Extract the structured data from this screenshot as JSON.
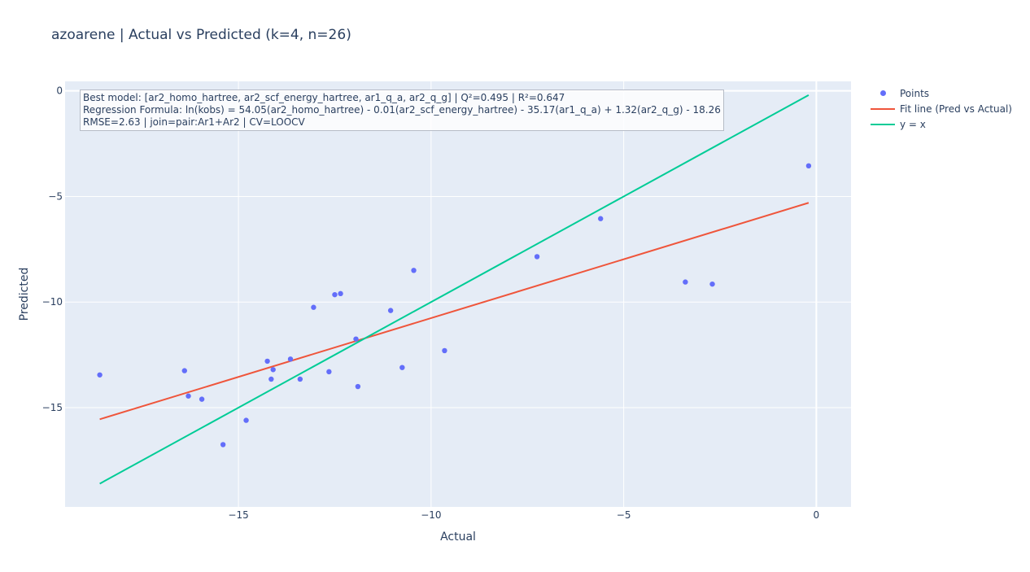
{
  "chart_data": {
    "type": "scatter",
    "title": "azoarene | Actual vs Predicted (k=4, n=26)",
    "xlabel": "Actual",
    "ylabel": "Predicted",
    "xlim": [
      -19.5,
      0.9
    ],
    "ylim": [
      -19.7,
      0.45
    ],
    "xticks": [
      -15,
      -10,
      -5,
      0
    ],
    "yticks": [
      0,
      -5,
      -10,
      -15
    ],
    "xtick_labels": [
      "−15",
      "−10",
      "−5",
      "0"
    ],
    "ytick_labels": [
      "0",
      "−5",
      "−10",
      "−15"
    ],
    "grid": true,
    "legend_position": "top-right",
    "colors": {
      "background": "#e5ecf6",
      "points": "#636efa",
      "fit": "#ef553b",
      "identity": "#00cc96"
    },
    "series": [
      {
        "name": "Points",
        "kind": "markers",
        "x": [
          -18.6,
          -16.4,
          -16.3,
          -15.95,
          -15.4,
          -14.8,
          -14.25,
          -14.1,
          -14.15,
          -13.65,
          -13.4,
          -13.05,
          -12.65,
          -12.5,
          -12.35,
          -11.95,
          -11.9,
          -11.05,
          -10.75,
          -10.45,
          -9.65,
          -7.25,
          -5.6,
          -3.4,
          -2.7,
          -0.2
        ],
        "y": [
          -13.45,
          -13.25,
          -14.45,
          -14.6,
          -16.75,
          -15.6,
          -12.8,
          -13.2,
          -13.65,
          -12.7,
          -13.65,
          -10.25,
          -13.3,
          -9.65,
          -9.6,
          -11.75,
          -14.0,
          -10.4,
          -13.1,
          -8.5,
          -12.3,
          -7.85,
          -6.05,
          -9.05,
          -9.15,
          -3.55
        ]
      },
      {
        "name": "Fit line (Pred vs Actual)",
        "kind": "line",
        "x": [
          -18.6,
          -0.2
        ],
        "y": [
          -15.55,
          -5.3
        ]
      },
      {
        "name": "y = x",
        "kind": "line",
        "x": [
          -18.6,
          -0.2
        ],
        "y": [
          -18.6,
          -0.2
        ]
      }
    ],
    "annotation": [
      "Best model: [ar2_homo_hartree, ar2_scf_energy_hartree, ar1_q_a, ar2_q_g] | Q²=0.495 | R²=0.647",
      "Regression Formula: ln(kobs) = 54.05(ar2_homo_hartree) - 0.01(ar2_scf_energy_hartree) - 35.17(ar1_q_a) + 1.32(ar2_q_g) - 18.26",
      "RMSE=2.63 | join=pair:Ar1+Ar2 | CV=LOOCV"
    ]
  }
}
